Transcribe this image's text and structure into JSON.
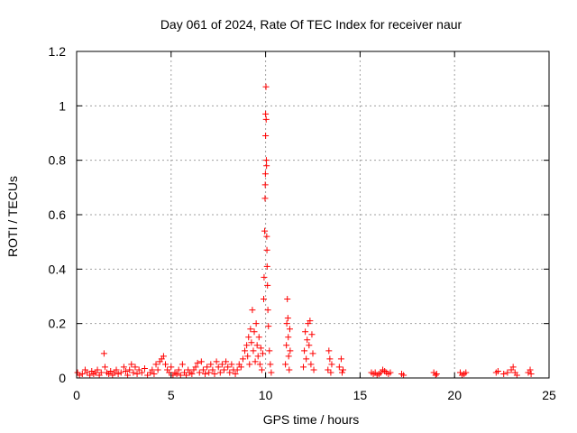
{
  "chart_data": {
    "type": "scatter",
    "title": "Day 061 of 2024, Rate Of TEC Index for receiver naur",
    "xlabel": "GPS time / hours",
    "ylabel": "ROTI / TECUs",
    "xlim": [
      0,
      25
    ],
    "ylim": [
      0,
      1.2
    ],
    "xticks": [
      "0",
      "5",
      "10",
      "15",
      "20",
      "25"
    ],
    "yticks": [
      "0",
      "0.2",
      "0.4",
      "0.6",
      "0.8",
      "1",
      "1.2"
    ],
    "grid": true,
    "marker": "+",
    "color": "#ff0000",
    "series": [
      {
        "points": [
          [
            0.05,
            0.02
          ],
          [
            0.15,
            0.01
          ],
          [
            0.3,
            0.015
          ],
          [
            0.45,
            0.03
          ],
          [
            0.55,
            0.02
          ],
          [
            0.7,
            0.01
          ],
          [
            0.8,
            0.025
          ],
          [
            0.9,
            0.015
          ],
          [
            1.0,
            0.02
          ],
          [
            1.1,
            0.03
          ],
          [
            1.2,
            0.01
          ],
          [
            1.3,
            0.02
          ],
          [
            1.45,
            0.09
          ],
          [
            1.5,
            0.04
          ],
          [
            1.6,
            0.02
          ],
          [
            1.7,
            0.015
          ],
          [
            1.8,
            0.025
          ],
          [
            1.9,
            0.01
          ],
          [
            2.0,
            0.02
          ],
          [
            2.1,
            0.03
          ],
          [
            2.2,
            0.015
          ],
          [
            2.35,
            0.02
          ],
          [
            2.5,
            0.04
          ],
          [
            2.6,
            0.025
          ],
          [
            2.7,
            0.01
          ],
          [
            2.8,
            0.03
          ],
          [
            2.9,
            0.05
          ],
          [
            3.0,
            0.02
          ],
          [
            3.1,
            0.04
          ],
          [
            3.2,
            0.015
          ],
          [
            3.3,
            0.03
          ],
          [
            3.45,
            0.02
          ],
          [
            3.6,
            0.035
          ],
          [
            3.75,
            0.01
          ],
          [
            3.9,
            0.02
          ],
          [
            4.0,
            0.03
          ],
          [
            4.1,
            0.015
          ],
          [
            4.2,
            0.05
          ],
          [
            4.3,
            0.03
          ],
          [
            4.4,
            0.06
          ],
          [
            4.5,
            0.07
          ],
          [
            4.6,
            0.08
          ],
          [
            4.7,
            0.05
          ],
          [
            4.8,
            0.03
          ],
          [
            4.9,
            0.02
          ],
          [
            5.0,
            0.04
          ],
          [
            5.1,
            0.01
          ],
          [
            5.2,
            0.02
          ],
          [
            5.3,
            0.015
          ],
          [
            5.4,
            0.03
          ],
          [
            5.5,
            0.01
          ],
          [
            5.6,
            0.05
          ],
          [
            5.7,
            0.02
          ],
          [
            5.8,
            0.01
          ],
          [
            5.9,
            0.03
          ],
          [
            6.0,
            0.02
          ],
          [
            6.1,
            0.015
          ],
          [
            6.2,
            0.03
          ],
          [
            6.3,
            0.04
          ],
          [
            6.4,
            0.055
          ],
          [
            6.5,
            0.02
          ],
          [
            6.6,
            0.06
          ],
          [
            6.7,
            0.03
          ],
          [
            6.8,
            0.015
          ],
          [
            6.9,
            0.04
          ],
          [
            7.0,
            0.02
          ],
          [
            7.1,
            0.05
          ],
          [
            7.2,
            0.03
          ],
          [
            7.3,
            0.015
          ],
          [
            7.4,
            0.06
          ],
          [
            7.5,
            0.04
          ],
          [
            7.6,
            0.02
          ],
          [
            7.7,
            0.05
          ],
          [
            7.8,
            0.03
          ],
          [
            7.9,
            0.06
          ],
          [
            8.0,
            0.04
          ],
          [
            8.1,
            0.02
          ],
          [
            8.2,
            0.05
          ],
          [
            8.3,
            0.03
          ],
          [
            8.4,
            0.015
          ],
          [
            8.5,
            0.03
          ],
          [
            8.6,
            0.05
          ],
          [
            8.7,
            0.04
          ],
          [
            8.8,
            0.07
          ],
          [
            8.9,
            0.1
          ],
          [
            9.0,
            0.12
          ],
          [
            9.05,
            0.08
          ],
          [
            9.1,
            0.15
          ],
          [
            9.15,
            0.05
          ],
          [
            9.2,
            0.18
          ],
          [
            9.25,
            0.13
          ],
          [
            9.3,
            0.25
          ],
          [
            9.35,
            0.1
          ],
          [
            9.4,
            0.17
          ],
          [
            9.45,
            0.06
          ],
          [
            9.5,
            0.2
          ],
          [
            9.55,
            0.12
          ],
          [
            9.6,
            0.08
          ],
          [
            9.65,
            0.15
          ],
          [
            9.7,
            0.05
          ],
          [
            9.75,
            0.11
          ],
          [
            9.8,
            0.03
          ],
          [
            9.85,
            0.09
          ],
          [
            9.9,
            0.29
          ],
          [
            9.92,
            0.37
          ],
          [
            9.95,
            0.54
          ],
          [
            9.97,
            0.66
          ],
          [
            9.98,
            0.71
          ],
          [
            9.99,
            0.75
          ],
          [
            10.0,
            0.89
          ],
          [
            10.0,
            0.97
          ],
          [
            10.02,
            1.07
          ],
          [
            10.03,
            0.95
          ],
          [
            10.04,
            0.8
          ],
          [
            10.05,
            0.78
          ],
          [
            10.06,
            0.52
          ],
          [
            10.07,
            0.47
          ],
          [
            10.08,
            0.41
          ],
          [
            10.1,
            0.34
          ],
          [
            10.12,
            0.25
          ],
          [
            10.15,
            0.19
          ],
          [
            10.2,
            0.1
          ],
          [
            10.25,
            0.05
          ],
          [
            10.3,
            0.02
          ],
          [
            11.05,
            0.05
          ],
          [
            11.1,
            0.12
          ],
          [
            11.12,
            0.2
          ],
          [
            11.15,
            0.29
          ],
          [
            11.18,
            0.22
          ],
          [
            11.2,
            0.15
          ],
          [
            11.22,
            0.08
          ],
          [
            11.25,
            0.03
          ],
          [
            11.28,
            0.18
          ],
          [
            11.3,
            0.1
          ],
          [
            12.0,
            0.04
          ],
          [
            12.05,
            0.1
          ],
          [
            12.1,
            0.17
          ],
          [
            12.15,
            0.07
          ],
          [
            12.2,
            0.14
          ],
          [
            12.25,
            0.2
          ],
          [
            12.3,
            0.12
          ],
          [
            12.35,
            0.21
          ],
          [
            12.4,
            0.05
          ],
          [
            12.45,
            0.16
          ],
          [
            12.5,
            0.09
          ],
          [
            12.55,
            0.03
          ],
          [
            13.3,
            0.03
          ],
          [
            13.35,
            0.1
          ],
          [
            13.4,
            0.07
          ],
          [
            13.45,
            0.02
          ],
          [
            13.5,
            0.05
          ],
          [
            13.9,
            0.04
          ],
          [
            14.0,
            0.07
          ],
          [
            14.05,
            0.02
          ],
          [
            14.1,
            0.03
          ],
          [
            15.6,
            0.02
          ],
          [
            15.7,
            0.015
          ],
          [
            15.8,
            0.02
          ],
          [
            15.9,
            0.01
          ],
          [
            16.0,
            0.015
          ],
          [
            16.1,
            0.02
          ],
          [
            16.2,
            0.03
          ],
          [
            16.3,
            0.025
          ],
          [
            16.4,
            0.02
          ],
          [
            16.5,
            0.015
          ],
          [
            16.6,
            0.02
          ],
          [
            17.2,
            0.015
          ],
          [
            17.3,
            0.01
          ],
          [
            18.9,
            0.02
          ],
          [
            19.0,
            0.01
          ],
          [
            19.05,
            0.015
          ],
          [
            20.3,
            0.02
          ],
          [
            20.4,
            0.01
          ],
          [
            20.5,
            0.015
          ],
          [
            20.6,
            0.02
          ],
          [
            22.2,
            0.02
          ],
          [
            22.3,
            0.025
          ],
          [
            22.6,
            0.015
          ],
          [
            22.8,
            0.02
          ],
          [
            23.0,
            0.03
          ],
          [
            23.1,
            0.04
          ],
          [
            23.2,
            0.02
          ],
          [
            23.3,
            0.01
          ],
          [
            23.9,
            0.02
          ],
          [
            24.0,
            0.03
          ],
          [
            24.05,
            0.015
          ]
        ]
      }
    ]
  }
}
